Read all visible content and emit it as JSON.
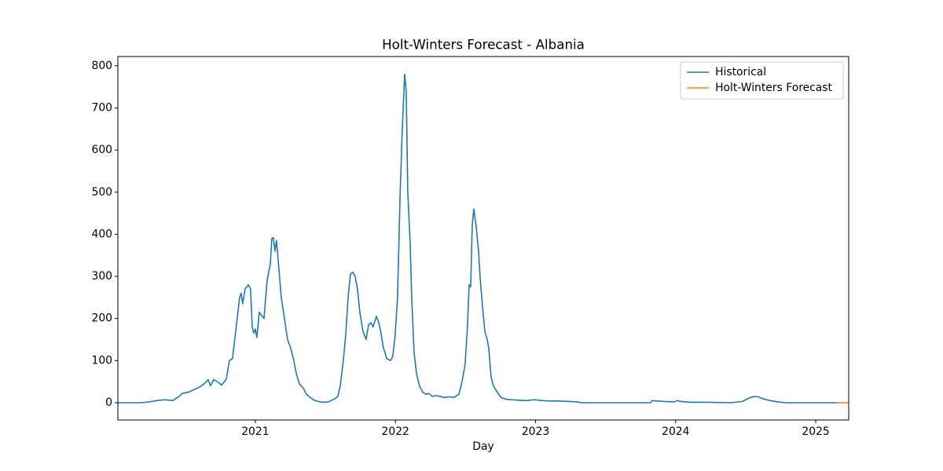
{
  "chart_data": {
    "type": "line",
    "title": "Holt-Winters Forecast - Albania",
    "x_label": "Day",
    "xlim": [
      2020.019,
      2025.235
    ],
    "xticks": [
      2021,
      2022,
      2023,
      2024,
      2025
    ],
    "ylim": [
      -41,
      822
    ],
    "yticks": [
      0,
      100,
      200,
      300,
      400,
      500,
      600,
      700,
      800
    ],
    "grid": false,
    "legend": "upper right",
    "series": [
      {
        "name": "Historical",
        "color": "#1f77b4",
        "x": [
          2020.019,
          2020.187,
          2020.243,
          2020.299,
          2020.355,
          2020.411,
          2020.456,
          2020.478,
          2020.523,
          2020.568,
          2020.607,
          2020.647,
          2020.663,
          2020.68,
          2020.703,
          2020.736,
          2020.759,
          2020.792,
          2020.815,
          2020.837,
          2020.86,
          2020.888,
          2020.899,
          2020.91,
          2020.927,
          2020.95,
          2020.966,
          2020.978,
          2020.989,
          2021.0,
          2021.011,
          2021.028,
          2021.05,
          2021.062,
          2021.084,
          2021.107,
          2021.118,
          2021.129,
          2021.14,
          2021.151,
          2021.168,
          2021.185,
          2021.208,
          2021.23,
          2021.252,
          2021.275,
          2021.292,
          2021.314,
          2021.342,
          2021.365,
          2021.393,
          2021.421,
          2021.449,
          2021.477,
          2021.522,
          2021.561,
          2021.589,
          2021.606,
          2021.628,
          2021.645,
          2021.662,
          2021.679,
          2021.695,
          2021.712,
          2021.729,
          2021.746,
          2021.768,
          2021.791,
          2021.808,
          2021.824,
          2021.841,
          2021.864,
          2021.881,
          2021.897,
          2021.914,
          2021.925,
          2021.937,
          2021.965,
          2021.981,
          2021.998,
          2022.015,
          2022.032,
          2022.049,
          2022.066,
          2022.077,
          2022.088,
          2022.105,
          2022.116,
          2022.133,
          2022.15,
          2022.172,
          2022.195,
          2022.217,
          2022.239,
          2022.262,
          2022.29,
          2022.318,
          2022.352,
          2022.374,
          2022.419,
          2022.453,
          2022.475,
          2022.497,
          2022.514,
          2022.526,
          2022.537,
          2022.548,
          2022.559,
          2022.576,
          2022.593,
          2022.604,
          2022.621,
          2022.638,
          2022.655,
          2022.666,
          2022.683,
          2022.699,
          2022.727,
          2022.755,
          2022.795,
          2022.834,
          2022.879,
          2022.935,
          2022.991,
          2023.047,
          2023.103,
          2023.159,
          2023.243,
          2023.299,
          2023.327,
          2023.821,
          2023.832,
          2023.916,
          2023.989,
          2024.011,
          2024.034,
          2024.112,
          2024.225,
          2024.393,
          2024.477,
          2024.516,
          2024.561,
          2024.589,
          2024.617,
          2024.673,
          2024.729,
          2024.785,
          2025.15
        ],
        "values": [
          0,
          0,
          2,
          5,
          7,
          5,
          15,
          22,
          25,
          32,
          38,
          48,
          55,
          40,
          55,
          48,
          42,
          55,
          100,
          105,
          170,
          250,
          260,
          235,
          270,
          280,
          270,
          180,
          165,
          175,
          155,
          215,
          205,
          200,
          290,
          330,
          390,
          392,
          360,
          385,
          320,
          250,
          200,
          150,
          130,
          100,
          70,
          45,
          35,
          20,
          12,
          6,
          3,
          1,
          2,
          8,
          15,
          40,
          100,
          160,
          250,
          305,
          310,
          300,
          270,
          215,
          170,
          150,
          185,
          190,
          180,
          205,
          190,
          165,
          130,
          120,
          105,
          100,
          110,
          160,
          250,
          480,
          650,
          780,
          740,
          500,
          380,
          250,
          120,
          70,
          40,
          25,
          20,
          22,
          15,
          17,
          15,
          12,
          14,
          13,
          20,
          50,
          90,
          180,
          280,
          275,
          420,
          460,
          420,
          360,
          300,
          230,
          170,
          150,
          130,
          60,
          40,
          25,
          12,
          8,
          7,
          6,
          5,
          7,
          5,
          4,
          4,
          3,
          2,
          0,
          0,
          5,
          3,
          2,
          5,
          3,
          1,
          1,
          0,
          3,
          10,
          15,
          14,
          10,
          5,
          2,
          0,
          0
        ]
      },
      {
        "name": "Holt-Winters Forecast",
        "color": "#ff7f0e",
        "x": [
          2025.15,
          2025.2,
          2025.235
        ],
        "values": [
          0,
          0,
          0
        ]
      }
    ]
  }
}
